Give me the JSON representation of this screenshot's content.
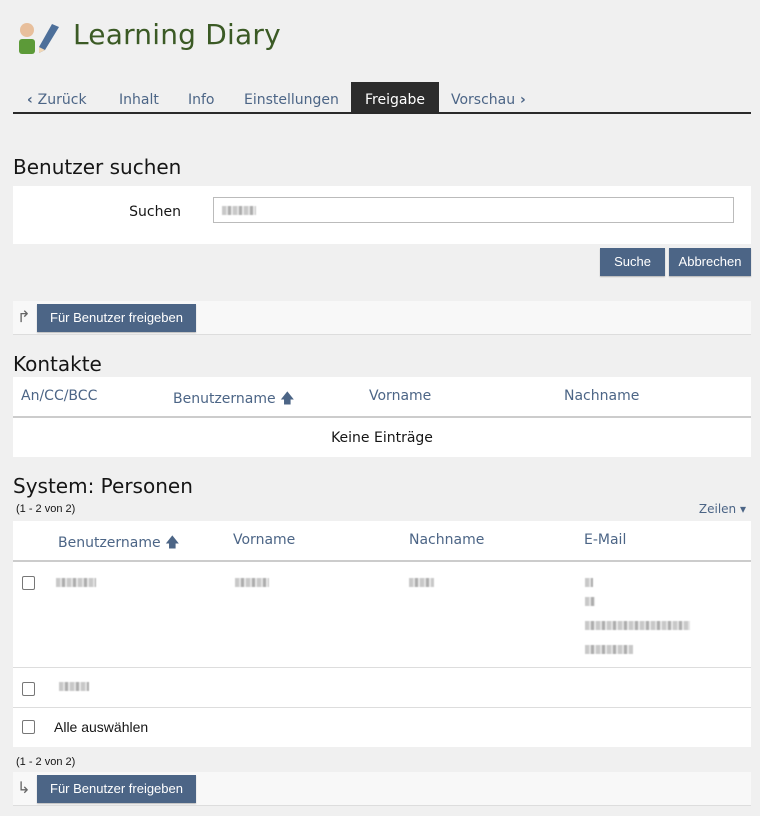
{
  "header": {
    "title": "Learning Diary",
    "icon": "learning-diary-icon"
  },
  "tabs": [
    {
      "label": "Zurück",
      "icon": "chevron-left-icon"
    },
    {
      "label": "Inhalt"
    },
    {
      "label": "Info"
    },
    {
      "label": "Einstellungen"
    },
    {
      "label": "Freigabe",
      "active": true
    },
    {
      "label": "Vorschau",
      "icon": "chevron-right-icon"
    }
  ],
  "search_section": {
    "heading": "Benutzer suchen",
    "label": "Suchen",
    "submit": "Suche",
    "cancel": "Abbrechen"
  },
  "share_button": "Für Benutzer freigeben",
  "contacts": {
    "heading": "Kontakte",
    "columns": [
      "An/CC/BCC",
      "Benutzername",
      "Vorname",
      "Nachname"
    ],
    "empty": "Keine Einträge"
  },
  "persons": {
    "heading": "System: Personen",
    "count": "(1 - 2 von 2)",
    "rows_menu": "Zeilen",
    "columns": [
      "Benutzername",
      "Vorname",
      "Nachname",
      "E-Mail"
    ],
    "select_all": "Alle auswählen"
  },
  "colors": {
    "accent": "#4c6586",
    "title": "#3b5a25",
    "active_tab": "#2c2c2c"
  }
}
